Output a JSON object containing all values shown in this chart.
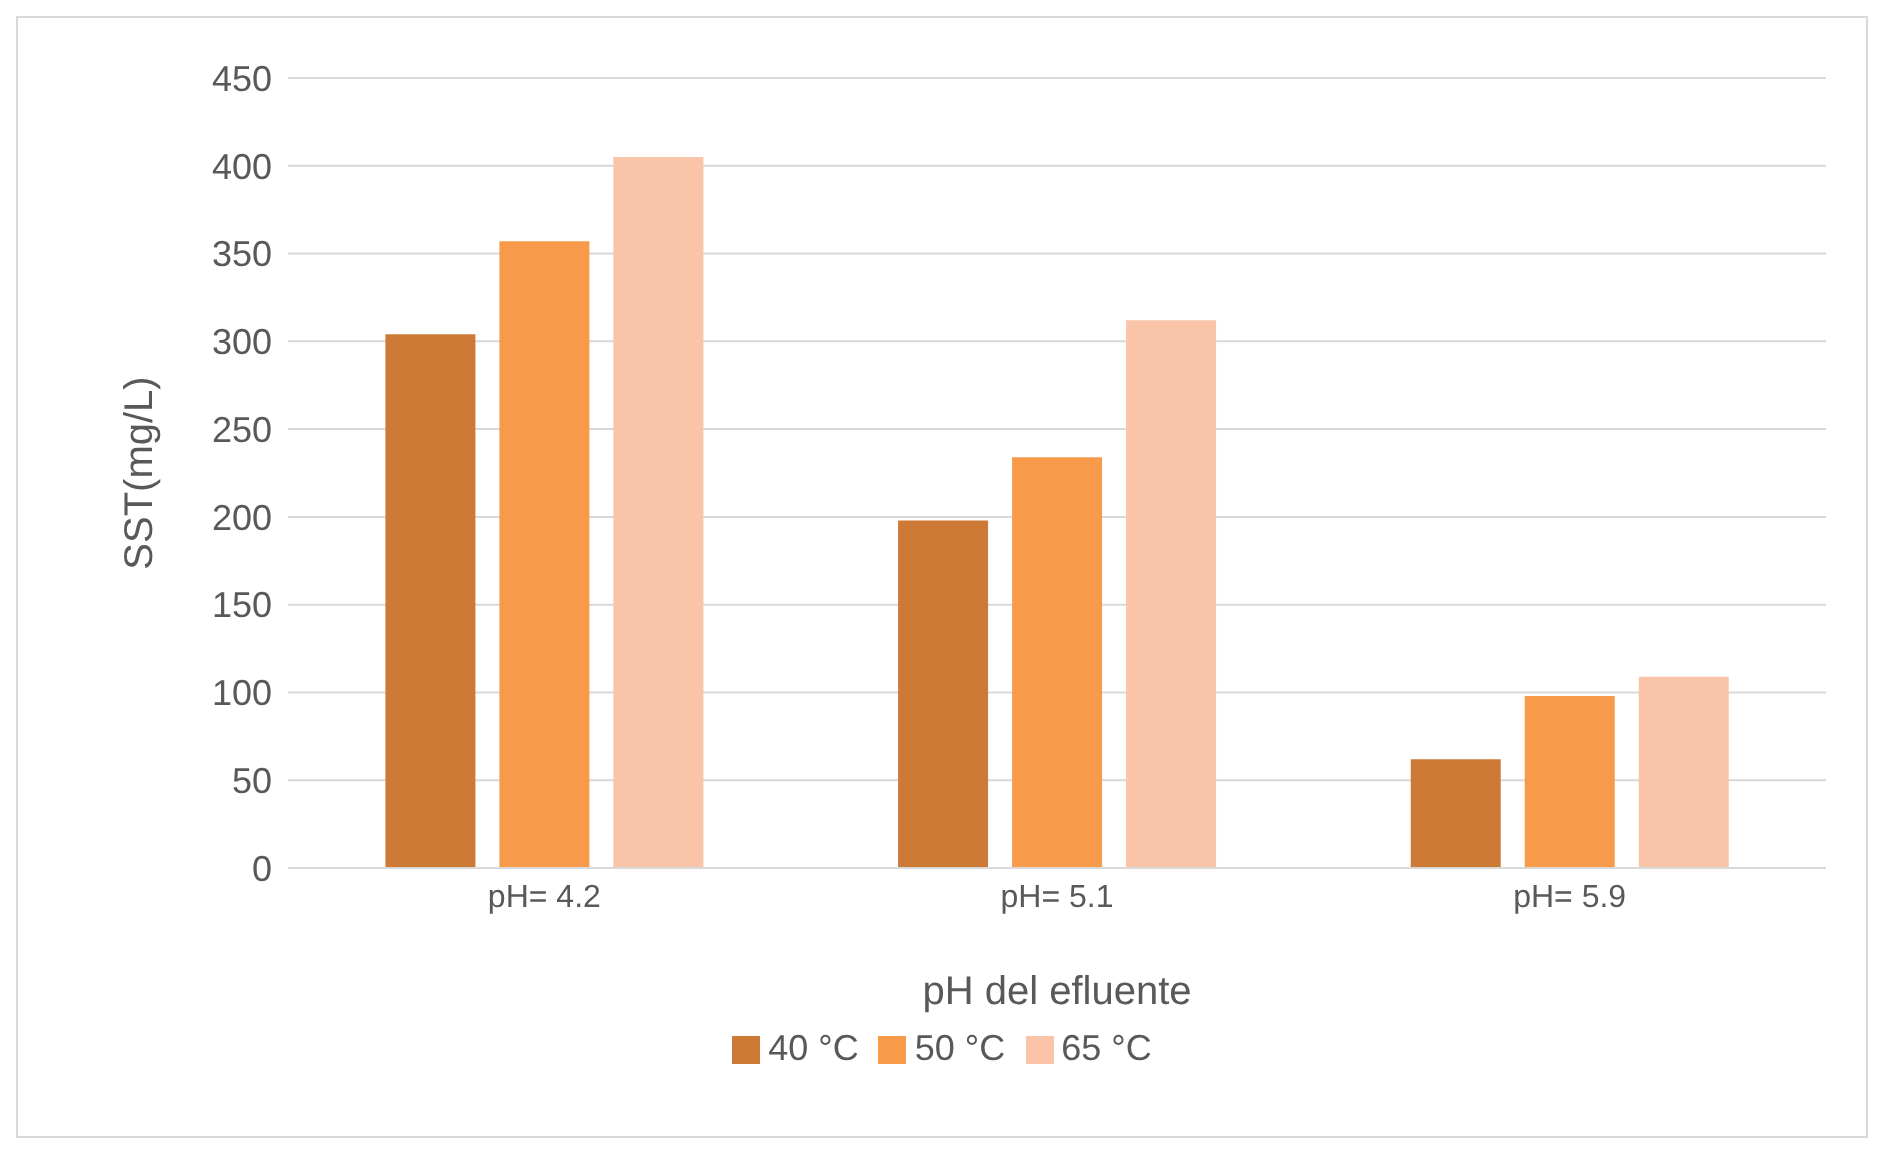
{
  "chart_data": {
    "type": "bar",
    "xlabel": "pH del efluente",
    "ylabel": "SST(mg/L)",
    "categories": [
      "pH= 4.2",
      "pH= 5.1",
      "pH= 5.9"
    ],
    "series": [
      {
        "name": "40 °C",
        "color": "#cd7a37",
        "values": [
          304,
          198,
          62
        ]
      },
      {
        "name": "50 °C",
        "color": "#f79a4a",
        "values": [
          357,
          234,
          98
        ]
      },
      {
        "name": "65 °C",
        "color": "#f9c4a8",
        "values": [
          405,
          312,
          109
        ]
      }
    ],
    "ylim": [
      0,
      450
    ],
    "yticks": [
      0,
      50,
      100,
      150,
      200,
      250,
      300,
      350,
      400,
      450
    ],
    "grid": "y",
    "legend": "bottom"
  }
}
